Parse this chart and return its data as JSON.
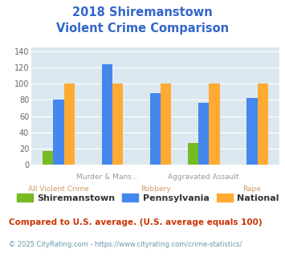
{
  "title_line1": "2018 Shiremanstown",
  "title_line2": "Violent Crime Comparison",
  "title_color": "#3366cc",
  "categories": [
    "All Violent Crime",
    "Murder & Mans...",
    "Robbery",
    "Aggravated Assault",
    "Rape"
  ],
  "shiremanstown": [
    17,
    0,
    0,
    27,
    0
  ],
  "pennsylvania": [
    80,
    124,
    88,
    76,
    82
  ],
  "national": [
    100,
    100,
    100,
    100,
    100
  ],
  "colors": {
    "shiremanstown": "#77bb22",
    "pennsylvania": "#4488ee",
    "national": "#ffaa33"
  },
  "ylim": [
    0,
    145
  ],
  "yticks": [
    0,
    20,
    40,
    60,
    80,
    100,
    120,
    140
  ],
  "plot_bg_color": "#dce8f0",
  "legend_labels": [
    "Shiremanstown",
    "Pennsylvania",
    "National"
  ],
  "cat_top": [
    "",
    "Murder & Mans...",
    "",
    "Aggravated Assault",
    ""
  ],
  "cat_bot": [
    "All Violent Crime",
    "",
    "Robbery",
    "",
    "Rape"
  ],
  "cat_top_color": "#999999",
  "cat_bot_color": "#cc9966",
  "footnote1": "Compared to U.S. average. (U.S. average equals 100)",
  "footnote2": "© 2025 CityRating.com - https://www.cityrating.com/crime-statistics/",
  "footnote1_color": "#cc3300",
  "footnote2_color": "#6699aa"
}
